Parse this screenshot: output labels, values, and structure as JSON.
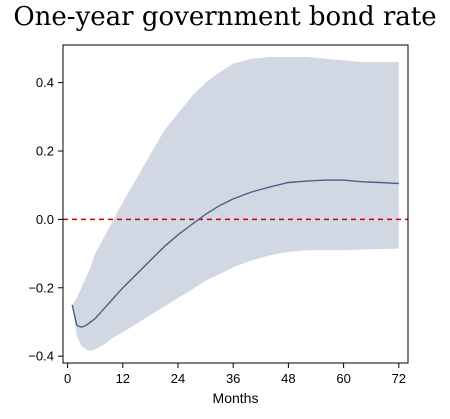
{
  "chart_data": {
    "type": "line",
    "title": "One-year government bond rate",
    "xlabel": "Months",
    "ylabel": "",
    "xlim": [
      -1,
      74
    ],
    "ylim": [
      -0.42,
      0.51
    ],
    "x_ticks": [
      0,
      12,
      24,
      36,
      48,
      60,
      72
    ],
    "y_ticks": [
      -0.4,
      -0.2,
      0.0,
      0.2,
      0.4
    ],
    "y_tick_labels": [
      "−0.4",
      "−0.2",
      "0.0",
      "0.2",
      "0.4"
    ],
    "reference_line": {
      "y": 0.0,
      "color": "#cc0000",
      "style": "dashed"
    },
    "band_color": "#d1d8e4",
    "line_color": "#4a5f8a",
    "x": [
      1,
      2,
      3,
      4,
      5,
      6,
      8,
      10,
      12,
      15,
      18,
      21,
      24,
      27,
      30,
      33,
      36,
      40,
      44,
      48,
      52,
      56,
      60,
      64,
      68,
      72
    ],
    "series": [
      {
        "values": [
          -0.25,
          -0.31,
          -0.315,
          -0.31,
          -0.3,
          -0.29,
          -0.26,
          -0.23,
          -0.2,
          -0.16,
          -0.12,
          -0.08,
          -0.045,
          -0.015,
          0.015,
          0.04,
          0.06,
          0.08,
          0.095,
          0.108,
          0.112,
          0.115,
          0.115,
          0.11,
          0.108,
          0.105
        ]
      }
    ],
    "band": {
      "upper": [
        -0.25,
        -0.23,
        -0.2,
        -0.17,
        -0.14,
        -0.1,
        -0.05,
        0.0,
        0.05,
        0.12,
        0.19,
        0.26,
        0.31,
        0.36,
        0.4,
        0.43,
        0.455,
        0.47,
        0.475,
        0.475,
        0.475,
        0.47,
        0.465,
        0.46,
        0.46,
        0.46
      ],
      "lower": [
        -0.25,
        -0.34,
        -0.37,
        -0.38,
        -0.385,
        -0.38,
        -0.365,
        -0.345,
        -0.33,
        -0.305,
        -0.28,
        -0.255,
        -0.23,
        -0.205,
        -0.18,
        -0.16,
        -0.14,
        -0.12,
        -0.105,
        -0.095,
        -0.09,
        -0.09,
        -0.09,
        -0.088,
        -0.087,
        -0.085
      ]
    }
  }
}
